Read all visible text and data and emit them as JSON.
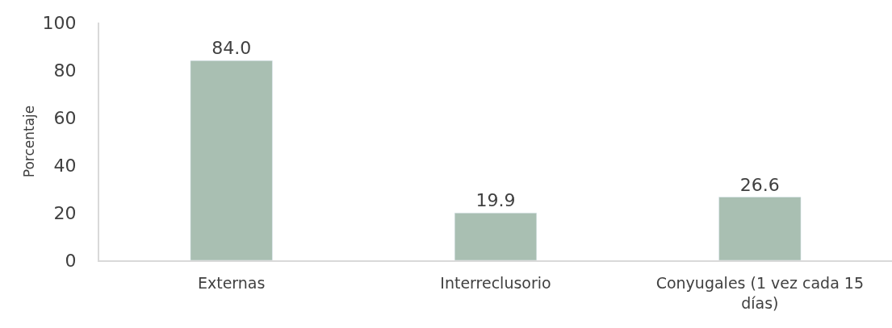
{
  "chart_data": {
    "type": "bar",
    "ylabel": "Porcentaje",
    "categories": [
      "Externas",
      "Interreclusorio",
      "Conyugales (1 vez cada 15 días)"
    ],
    "values": [
      84.0,
      19.9,
      26.6
    ],
    "color": "#a9bfb2",
    "value_labels": [
      "84.0",
      "19.9",
      "26.6"
    ],
    "ylim": [
      0,
      100
    ],
    "yticks": [
      0,
      20,
      40,
      60,
      80,
      100
    ]
  }
}
